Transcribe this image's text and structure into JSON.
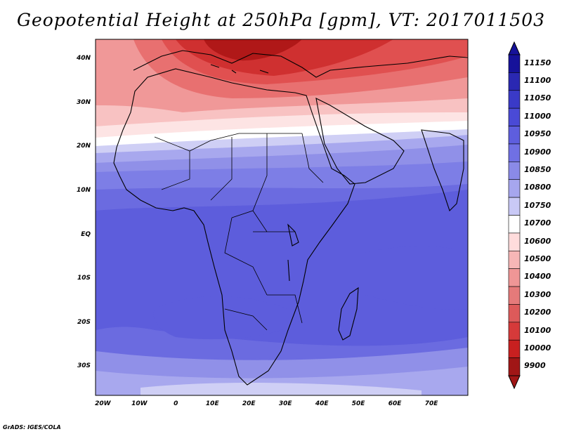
{
  "title": "Geopotential Height at 250hPa [gpm], VT: 2017011503",
  "credit": "GrADS: IGES/COLA",
  "axes": {
    "latitude_labels": [
      "40N",
      "30N",
      "20N",
      "10N",
      "EQ",
      "10S",
      "20S",
      "30S"
    ],
    "latitude_values": [
      40,
      30,
      20,
      10,
      0,
      -10,
      -20,
      -30
    ],
    "longitude_labels": [
      "20W",
      "10W",
      "0",
      "10E",
      "20E",
      "30E",
      "40E",
      "50E",
      "60E",
      "70E"
    ],
    "longitude_values": [
      -20,
      -10,
      0,
      10,
      20,
      30,
      40,
      50,
      60,
      70
    ],
    "lat_range": [
      -36.5,
      44.5
    ],
    "lon_range": [
      -22,
      80
    ]
  },
  "colorbar": {
    "levels": [
      "11150",
      "11100",
      "11050",
      "11000",
      "10950",
      "10900",
      "10850",
      "10800",
      "10750",
      "10700",
      "10600",
      "10500",
      "10400",
      "10300",
      "10200",
      "10100",
      "10000",
      "9900"
    ],
    "colors": [
      "#16129a",
      "#2a28b2",
      "#3a3ac8",
      "#4a4ad6",
      "#5e5ede",
      "#7070e4",
      "#8a8ae8",
      "#a6a6ee",
      "#c9c9f6",
      "#ffffff",
      "#ffdcdc",
      "#f7b6b6",
      "#ef9696",
      "#e57a7a",
      "#dd5a5a",
      "#d63a3a",
      "#c82020",
      "#a01616"
    ]
  },
  "field_colors": {
    "darkest_red": "#b01818",
    "dark_red": "#cf3030",
    "red": "#e05050",
    "mid_red": "#e87070",
    "light_red": "#f09898",
    "pale_red": "#f8c2c2",
    "pink": "#fde4e4",
    "white": "#ffffff",
    "pale_blue": "#cfcff5",
    "light_blue": "#a8a8ee",
    "blue1": "#9090e8",
    "blue2": "#7d7ee6",
    "blue3": "#6b6be0",
    "blue4": "#5d5ddc",
    "deep_blue": "#5050d4"
  }
}
